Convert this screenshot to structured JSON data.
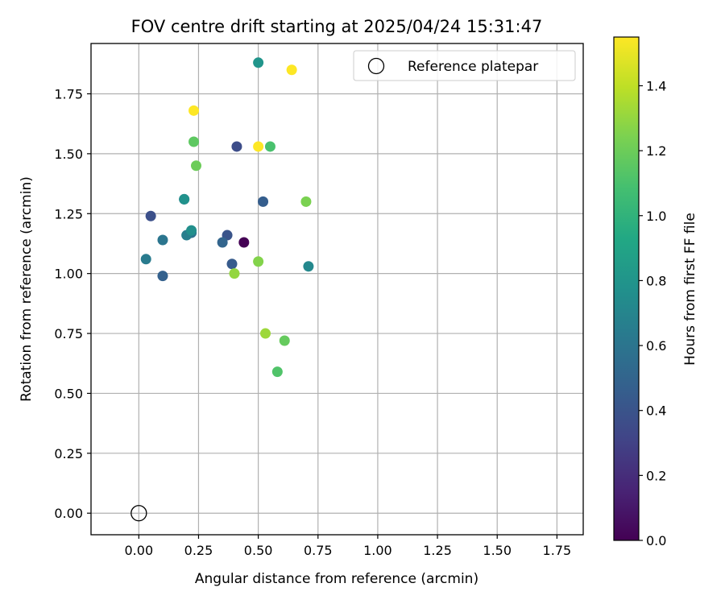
{
  "chart_data": {
    "type": "scatter",
    "title": "FOV centre drift starting at 2025/04/24 15:31:47",
    "xlabel": "Angular distance from reference (arcmin)",
    "ylabel": "Rotation from reference (arcmin)",
    "xlim": [
      -0.2,
      1.86
    ],
    "ylim": [
      -0.09,
      1.96
    ],
    "xticks": [
      0.0,
      0.25,
      0.5,
      0.75,
      1.0,
      1.25,
      1.5,
      1.75
    ],
    "xtick_labels": [
      "0.00",
      "0.25",
      "0.50",
      "0.75",
      "1.00",
      "1.25",
      "1.50",
      "1.75"
    ],
    "yticks": [
      0.0,
      0.25,
      0.5,
      0.75,
      1.0,
      1.25,
      1.5,
      1.75
    ],
    "ytick_labels": [
      "0.00",
      "0.25",
      "0.50",
      "0.75",
      "1.00",
      "1.25",
      "1.50",
      "1.75"
    ],
    "grid": true,
    "colorbar": {
      "label": "Hours from first FF file",
      "range": [
        0.0,
        1.55
      ],
      "ticks": [
        0.0,
        0.2,
        0.4,
        0.6,
        0.8,
        1.0,
        1.2,
        1.4
      ],
      "tick_labels": [
        "0.0",
        "0.2",
        "0.4",
        "0.6",
        "0.8",
        "1.0",
        "1.2",
        "1.4"
      ],
      "colormap": "viridis"
    },
    "legend": {
      "placement": "top-right",
      "entries": [
        {
          "label": "Reference platepar",
          "marker": "open-circle",
          "color": "#000000"
        }
      ]
    },
    "reference_point": {
      "x": 0.0,
      "y": 0.0
    },
    "series": [
      {
        "points": [
          {
            "x": 0.44,
            "y": 1.13,
            "hours": 0.0
          },
          {
            "x": 0.41,
            "y": 1.53,
            "hours": 0.36
          },
          {
            "x": 0.37,
            "y": 1.16,
            "hours": 0.4
          },
          {
            "x": 0.05,
            "y": 1.24,
            "hours": 0.38
          },
          {
            "x": 0.19,
            "y": 1.31,
            "hours": 0.42
          },
          {
            "x": 0.52,
            "y": 1.3,
            "hours": 0.46
          },
          {
            "x": 0.39,
            "y": 1.04,
            "hours": 0.44
          },
          {
            "x": 0.1,
            "y": 0.99,
            "hours": 0.48
          },
          {
            "x": 0.35,
            "y": 1.13,
            "hours": 0.5
          },
          {
            "x": 0.22,
            "y": 1.17,
            "hours": 0.58
          },
          {
            "x": 0.1,
            "y": 1.14,
            "hours": 0.6
          },
          {
            "x": 0.03,
            "y": 1.06,
            "hours": 0.64
          },
          {
            "x": 0.2,
            "y": 1.16,
            "hours": 0.66
          },
          {
            "x": 0.71,
            "y": 1.03,
            "hours": 0.72
          },
          {
            "x": 0.22,
            "y": 1.18,
            "hours": 0.76
          },
          {
            "x": 0.19,
            "y": 1.31,
            "hours": 0.78
          },
          {
            "x": 0.5,
            "y": 1.88,
            "hours": 0.8
          },
          {
            "x": 0.55,
            "y": 1.53,
            "hours": 1.1
          },
          {
            "x": 0.58,
            "y": 0.59,
            "hours": 1.12
          },
          {
            "x": 0.61,
            "y": 0.72,
            "hours": 1.18
          },
          {
            "x": 0.23,
            "y": 1.55,
            "hours": 1.16
          },
          {
            "x": 0.24,
            "y": 1.45,
            "hours": 1.2
          },
          {
            "x": 0.7,
            "y": 1.3,
            "hours": 1.24
          },
          {
            "x": 0.5,
            "y": 1.05,
            "hours": 1.26
          },
          {
            "x": 0.4,
            "y": 1.0,
            "hours": 1.3
          },
          {
            "x": 0.53,
            "y": 0.75,
            "hours": 1.32
          },
          {
            "x": 0.23,
            "y": 1.68,
            "hours": 1.55
          },
          {
            "x": 0.5,
            "y": 1.53,
            "hours": 1.55
          },
          {
            "x": 0.64,
            "y": 1.85,
            "hours": 1.55
          }
        ]
      }
    ]
  }
}
